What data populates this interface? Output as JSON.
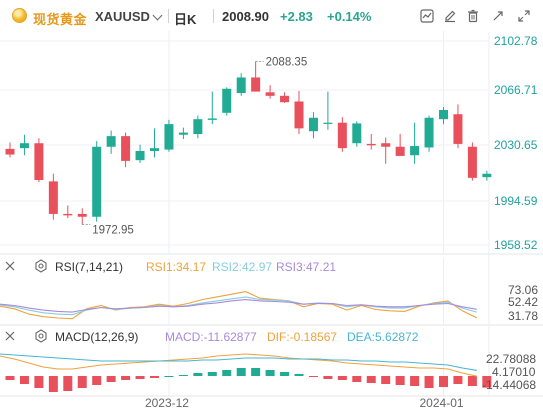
{
  "header": {
    "name": "现货黄金",
    "symbol": "XAUUSD",
    "period": "日K",
    "price": "2008.90",
    "change": "+2.83",
    "change_pct": "+0.14%"
  },
  "toolbar_icons": [
    "indicator-icon",
    "draw-icon",
    "delete-icon",
    "compare-icon",
    "fullscreen-icon"
  ],
  "colors": {
    "up": "#e8505b",
    "down": "#22ab94",
    "rsi1": "#f0a23c",
    "rsi2": "#86cde0",
    "rsi3": "#a98ad8",
    "macd": "#a98ad8",
    "dif": "#f0a23c",
    "dea": "#45b6d6",
    "axis_text": "#22a0a0"
  },
  "chart_data": [
    {
      "type": "candlestick",
      "yticks": [
        "2102.78",
        "2066.71",
        "2030.65",
        "1994.59",
        "1958.52"
      ],
      "ylim": [
        1958.52,
        2102.78
      ],
      "xticks": [
        {
          "label": "2023-12",
          "index": 11
        },
        {
          "label": "2024-01",
          "index": 30
        }
      ],
      "annotations": {
        "high": "2088.35",
        "low": "1972.95"
      },
      "candles": [
        {
          "o": 2026.5,
          "h": 2031,
          "l": 2020.5,
          "c": 2022.5
        },
        {
          "o": 2027,
          "h": 2036.5,
          "l": 2022,
          "c": 2030.5
        },
        {
          "o": 2030.5,
          "h": 2034,
          "l": 2003,
          "c": 2004.5
        },
        {
          "o": 2003.5,
          "h": 2009,
          "l": 1976.5,
          "c": 1980.5
        },
        {
          "o": 1980.5,
          "h": 1986.5,
          "l": 1977.5,
          "c": 1979.5
        },
        {
          "o": 1980.5,
          "h": 1984.5,
          "l": 1972.95,
          "c": 1978.5
        },
        {
          "o": 1978.5,
          "h": 2032,
          "l": 1975,
          "c": 2028
        },
        {
          "o": 2028,
          "h": 2039.5,
          "l": 2023,
          "c": 2035.5
        },
        {
          "o": 2035.5,
          "h": 2038,
          "l": 2013.5,
          "c": 2018
        },
        {
          "o": 2018.5,
          "h": 2029.5,
          "l": 2016.5,
          "c": 2025
        },
        {
          "o": 2025,
          "h": 2041,
          "l": 2020.5,
          "c": 2027
        },
        {
          "o": 2026,
          "h": 2047,
          "l": 2024.5,
          "c": 2044
        },
        {
          "o": 2036.5,
          "h": 2041.5,
          "l": 2033.5,
          "c": 2038
        },
        {
          "o": 2037,
          "h": 2050,
          "l": 2034,
          "c": 2047.5
        },
        {
          "o": 2047,
          "h": 2067,
          "l": 2044,
          "c": 2048
        },
        {
          "o": 2052,
          "h": 2070,
          "l": 2050,
          "c": 2069
        },
        {
          "o": 2066,
          "h": 2080,
          "l": 2064,
          "c": 2077
        },
        {
          "o": 2077,
          "h": 2088.35,
          "l": 2067,
          "c": 2067
        },
        {
          "o": 2066.5,
          "h": 2071.5,
          "l": 2062,
          "c": 2064
        },
        {
          "o": 2064,
          "h": 2066.5,
          "l": 2059,
          "c": 2059.5
        },
        {
          "o": 2060,
          "h": 2067.5,
          "l": 2037,
          "c": 2041
        },
        {
          "o": 2039,
          "h": 2052.5,
          "l": 2034,
          "c": 2048.5
        },
        {
          "o": 2044.5,
          "h": 2067,
          "l": 2040,
          "c": 2045
        },
        {
          "o": 2045,
          "h": 2049,
          "l": 2024.5,
          "c": 2027
        },
        {
          "o": 2030.5,
          "h": 2046,
          "l": 2028,
          "c": 2044.5
        },
        {
          "o": 2030,
          "h": 2037,
          "l": 2026,
          "c": 2029
        },
        {
          "o": 2030.5,
          "h": 2034.5,
          "l": 2016,
          "c": 2028
        },
        {
          "o": 2028,
          "h": 2037,
          "l": 2022,
          "c": 2021.5
        },
        {
          "o": 2022,
          "h": 2045,
          "l": 2016,
          "c": 2028.5
        },
        {
          "o": 2027.5,
          "h": 2050,
          "l": 2024.5,
          "c": 2048.5
        },
        {
          "o": 2047.5,
          "h": 2056,
          "l": 2044,
          "c": 2054
        },
        {
          "o": 2051,
          "h": 2058,
          "l": 2027,
          "c": 2030
        },
        {
          "o": 2028,
          "h": 2031,
          "l": 2004,
          "c": 2006
        },
        {
          "o": 2006.5,
          "h": 2011,
          "l": 2004,
          "c": 2008.9
        }
      ]
    },
    {
      "type": "line",
      "indicator": "RSI",
      "params": "RSI(7,14,21)",
      "readouts": [
        "RSI1:34.17",
        "RSI2:42.97",
        "RSI3:47.21"
      ],
      "yticks": [
        "73.06",
        "52.42",
        "31.78"
      ],
      "ylim": [
        28,
        78
      ],
      "series": [
        {
          "name": "RSI1",
          "values": [
            52,
            48,
            40,
            36,
            34,
            33,
            48,
            53,
            46,
            50,
            51,
            55,
            52,
            56,
            62,
            66,
            70,
            74,
            64,
            62,
            60,
            51,
            56,
            55,
            46,
            53,
            47,
            45,
            44,
            52,
            57,
            60,
            45,
            34.17
          ]
        },
        {
          "name": "RSI2",
          "values": [
            54,
            51,
            46,
            42,
            40,
            39,
            46,
            50,
            47,
            49,
            50,
            53,
            51,
            53,
            57,
            60,
            63,
            66,
            62,
            61,
            60,
            55,
            57,
            56,
            51,
            54,
            51,
            49,
            49,
            53,
            56,
            58,
            49,
            42.97
          ]
        },
        {
          "name": "RSI3",
          "values": [
            55,
            53,
            49,
            46,
            44,
            43,
            47,
            50,
            48,
            49,
            50,
            52,
            51,
            52,
            55,
            57,
            60,
            62,
            60,
            59,
            58,
            55,
            56,
            56,
            53,
            54,
            52,
            51,
            51,
            53,
            55,
            56,
            51,
            47.21
          ]
        }
      ]
    },
    {
      "type": "bar+line",
      "indicator": "MACD",
      "params": "MACD(12,26,9)",
      "readouts": [
        "MACD:-11.62877",
        "DIF:-0.18567",
        "DEA:5.62872"
      ],
      "yticks": [
        "22.78088",
        "4.17010",
        "-14.44068"
      ],
      "ylim": [
        -16,
        26
      ],
      "bars": [
        -4,
        -8,
        -12,
        -16,
        -15,
        -12,
        -9,
        -6,
        -4,
        -3,
        -2,
        0,
        1,
        3,
        4,
        6,
        8,
        8,
        6,
        4,
        2,
        -1,
        -3,
        -4,
        -6,
        -7,
        -8,
        -9,
        -10,
        -12,
        -11,
        -8,
        -10,
        -11.63
      ],
      "series": [
        {
          "name": "DIF",
          "values": [
            20,
            17,
            13,
            9,
            7,
            7,
            9,
            11,
            12,
            13,
            14,
            15,
            16,
            17,
            18,
            20,
            21,
            22,
            21,
            20,
            18,
            17,
            16,
            15,
            13,
            12,
            11,
            10,
            9,
            8,
            8,
            7,
            3,
            -0.19
          ]
        },
        {
          "name": "DEA",
          "values": [
            22,
            21,
            20,
            19,
            18,
            17,
            16,
            15,
            15,
            15,
            15,
            15,
            15,
            15,
            16,
            16,
            17,
            18,
            18,
            18,
            17,
            17,
            17,
            16,
            16,
            15,
            15,
            14,
            14,
            13,
            12,
            11,
            8,
            5.63
          ]
        }
      ]
    }
  ],
  "pane_icons": [
    "close-icon",
    "settings-icon"
  ]
}
